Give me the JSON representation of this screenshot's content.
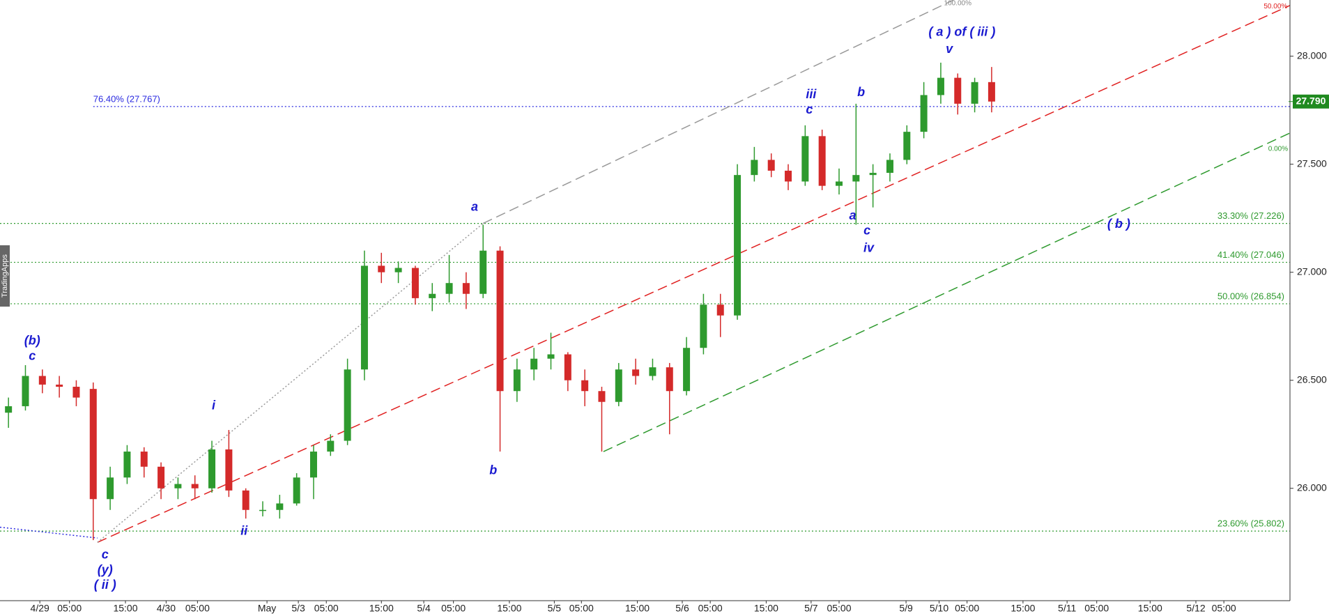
{
  "chart_data": {
    "type": "candlestick",
    "watermark": "TradingApps",
    "xlim": [
      0,
      152.2
    ],
    "ylim": [
      25.48,
      28.26
    ],
    "xticks": [
      {
        "value": 4.7,
        "label": "4/29"
      },
      {
        "value": 8.2,
        "label": "05:00"
      },
      {
        "value": 14.8,
        "label": "15:00"
      },
      {
        "value": 19.6,
        "label": "4/30"
      },
      {
        "value": 23.3,
        "label": "05:00"
      },
      {
        "value": 31.5,
        "label": "May"
      },
      {
        "value": 35.2,
        "label": "5/3"
      },
      {
        "value": 38.5,
        "label": "05:00"
      },
      {
        "value": 45,
        "label": "15:00"
      },
      {
        "value": 50,
        "label": "5/4"
      },
      {
        "value": 53.5,
        "label": "05:00"
      },
      {
        "value": 60.1,
        "label": "15:00"
      },
      {
        "value": 65.4,
        "label": "5/5"
      },
      {
        "value": 68.6,
        "label": "05:00"
      },
      {
        "value": 75.2,
        "label": "15:00"
      },
      {
        "value": 80.5,
        "label": "5/6"
      },
      {
        "value": 83.8,
        "label": "05:00"
      },
      {
        "value": 90.4,
        "label": "15:00"
      },
      {
        "value": 95.7,
        "label": "5/7"
      },
      {
        "value": 99,
        "label": "05:00"
      },
      {
        "value": 106.9,
        "label": "5/9"
      },
      {
        "value": 110.8,
        "label": "5/10"
      },
      {
        "value": 114.1,
        "label": "05:00"
      },
      {
        "value": 120.7,
        "label": "15:00"
      },
      {
        "value": 125.9,
        "label": "5/11"
      },
      {
        "value": 129.4,
        "label": "05:00"
      },
      {
        "value": 135.7,
        "label": "15:00"
      },
      {
        "value": 141.1,
        "label": "5/12"
      },
      {
        "value": 144.4,
        "label": "05:00"
      }
    ],
    "yticks": [
      {
        "value": 26,
        "label": "26.000"
      },
      {
        "value": 26.5,
        "label": "26.500"
      },
      {
        "value": 27,
        "label": "27.000"
      },
      {
        "value": 27.5,
        "label": "27.500"
      },
      {
        "value": 28,
        "label": "28.000"
      }
    ],
    "up_color": "#2e9a2e",
    "down_color": "#d42a2a",
    "x": [
      1,
      3,
      5,
      7,
      9,
      11,
      13,
      15,
      17,
      19,
      21,
      23,
      25,
      27,
      29,
      31,
      33,
      35,
      37,
      39,
      41,
      43,
      45,
      47,
      49,
      51,
      53,
      55,
      57,
      59,
      61,
      63,
      65,
      67,
      69,
      71,
      73,
      75,
      77,
      79,
      81,
      83,
      85,
      87,
      89,
      91,
      93,
      95,
      97,
      99,
      101,
      103,
      105,
      107,
      109,
      111,
      113,
      115,
      117
    ],
    "open": [
      26.35,
      26.38,
      26.52,
      26.48,
      26.47,
      26.46,
      25.95,
      26.05,
      26.17,
      26.1,
      26.0,
      26.02,
      26.0,
      26.18,
      25.99,
      25.9,
      25.9,
      25.93,
      26.05,
      26.17,
      26.22,
      26.55,
      27.03,
      27.0,
      27.02,
      26.88,
      26.9,
      26.95,
      26.9,
      27.1,
      26.45,
      26.55,
      26.6,
      26.62,
      26.5,
      26.45,
      26.4,
      26.55,
      26.52,
      26.56,
      26.45,
      26.65,
      26.85,
      26.8,
      27.45,
      27.52,
      27.47,
      27.42,
      27.63,
      27.4,
      27.42,
      27.45,
      27.46,
      27.52,
      27.65,
      27.82,
      27.9,
      27.78,
      27.88
    ],
    "high": [
      26.42,
      26.57,
      26.55,
      26.52,
      26.5,
      26.49,
      26.1,
      26.2,
      26.19,
      26.12,
      26.05,
      26.06,
      26.22,
      26.27,
      26.0,
      25.94,
      25.97,
      26.07,
      26.2,
      26.25,
      26.6,
      27.1,
      27.09,
      27.05,
      27.03,
      26.95,
      27.08,
      27.0,
      27.22,
      27.12,
      26.6,
      26.65,
      26.72,
      26.63,
      26.55,
      26.47,
      26.58,
      26.6,
      26.6,
      26.58,
      26.7,
      26.9,
      26.9,
      27.5,
      27.58,
      27.55,
      27.5,
      27.68,
      27.66,
      27.48,
      27.78,
      27.5,
      27.55,
      27.68,
      27.88,
      27.97,
      27.92,
      27.9,
      27.95
    ],
    "low": [
      26.28,
      26.36,
      26.44,
      26.42,
      26.38,
      25.76,
      25.9,
      26.02,
      26.05,
      25.95,
      25.95,
      25.95,
      25.98,
      25.96,
      25.86,
      25.87,
      25.86,
      25.92,
      25.95,
      26.15,
      26.2,
      26.5,
      26.95,
      26.95,
      26.85,
      26.82,
      26.86,
      26.83,
      26.88,
      26.17,
      26.4,
      26.5,
      26.55,
      26.45,
      26.38,
      26.17,
      26.38,
      26.48,
      26.5,
      26.25,
      26.43,
      26.62,
      26.7,
      26.78,
      27.42,
      27.44,
      27.38,
      27.4,
      27.38,
      27.36,
      27.22,
      27.3,
      27.42,
      27.5,
      27.62,
      27.78,
      27.73,
      27.74,
      27.74
    ],
    "close": [
      26.38,
      26.52,
      26.48,
      26.47,
      26.42,
      25.95,
      26.05,
      26.17,
      26.1,
      26.0,
      26.02,
      26.0,
      26.18,
      25.99,
      25.9,
      25.9,
      25.93,
      26.05,
      26.17,
      26.22,
      26.55,
      27.03,
      27.0,
      27.02,
      26.88,
      26.9,
      26.95,
      26.9,
      27.1,
      26.45,
      26.55,
      26.6,
      26.62,
      26.5,
      26.45,
      26.4,
      26.55,
      26.52,
      26.56,
      26.45,
      26.65,
      26.85,
      26.8,
      27.45,
      27.52,
      27.47,
      27.42,
      27.63,
      27.4,
      27.42,
      27.45,
      27.46,
      27.52,
      27.65,
      27.82,
      27.9,
      27.78,
      27.88,
      27.79
    ],
    "last_price": {
      "value": 27.79,
      "label": "27.790",
      "color": "#1f8a1f"
    },
    "fib_levels": [
      {
        "value": 27.767,
        "label": "76.40% (27.767)",
        "color": "#2a2ae0",
        "label_side": "left"
      },
      {
        "value": 27.226,
        "label": "33.30% (27.226)",
        "color": "#2e9a2e",
        "label_side": "right"
      },
      {
        "value": 27.046,
        "label": "41.40% (27.046)",
        "color": "#2e9a2e",
        "label_side": "right"
      },
      {
        "value": 26.854,
        "label": "50.00% (26.854)",
        "color": "#2e9a2e",
        "label_side": "right"
      },
      {
        "value": 25.802,
        "label": "23.60% (25.802)",
        "color": "#2e9a2e",
        "label_side": "right"
      }
    ],
    "trend_lines": [
      {
        "x": [
          11.5,
          152.5
        ],
        "y": [
          25.75,
          28.24
        ],
        "color": "#e02020",
        "style": "dashed",
        "label": "50.00%",
        "label_at": [
          150.5,
          28.23
        ]
      },
      {
        "x": [
          71.2,
          152.5
        ],
        "y": [
          26.17,
          27.65
        ],
        "color": "#2e9a2e",
        "style": "dashed",
        "label": "0.00%",
        "label_at": [
          150.8,
          27.57
        ]
      },
      {
        "x": [
          57,
          112.5
        ],
        "y": [
          27.226,
          28.26
        ],
        "color": "#999999",
        "style": "dashed",
        "label": "100.00%",
        "label_at": [
          113,
          28.245
        ]
      },
      {
        "x": [
          11.5,
          57
        ],
        "y": [
          25.75,
          27.226
        ],
        "color": "#999999",
        "style": "dotted"
      },
      {
        "x": [
          0,
          11.5
        ],
        "y": [
          25.82,
          25.77
        ],
        "color": "#2a2ae0",
        "style": "dotted"
      }
    ],
    "annotations": [
      {
        "text": "(b)",
        "x": 3.8,
        "y": 26.68
      },
      {
        "text": "c",
        "x": 3.8,
        "y": 26.61
      },
      {
        "text": "i",
        "x": 25.2,
        "y": 26.38
      },
      {
        "text": "ii",
        "x": 28.8,
        "y": 25.8
      },
      {
        "text": "c",
        "x": 12.4,
        "y": 25.69
      },
      {
        "text": "(y)",
        "x": 12.4,
        "y": 25.62
      },
      {
        "text": "( ii )",
        "x": 12.4,
        "y": 25.55
      },
      {
        "text": "a",
        "x": 56,
        "y": 27.3
      },
      {
        "text": "b",
        "x": 58.2,
        "y": 26.08
      },
      {
        "text": "iii",
        "x": 95.7,
        "y": 27.82
      },
      {
        "text": "c",
        "x": 95.5,
        "y": 27.75
      },
      {
        "text": "b",
        "x": 101.6,
        "y": 27.83
      },
      {
        "text": "a",
        "x": 100.6,
        "y": 27.26
      },
      {
        "text": "c",
        "x": 102.3,
        "y": 27.19
      },
      {
        "text": "iv",
        "x": 102.5,
        "y": 27.11
      },
      {
        "text": "( a ) of ( iii )",
        "x": 113.5,
        "y": 28.11
      },
      {
        "text": "v",
        "x": 112,
        "y": 28.03
      },
      {
        "text": "( b )",
        "x": 132,
        "y": 27.22
      }
    ]
  }
}
